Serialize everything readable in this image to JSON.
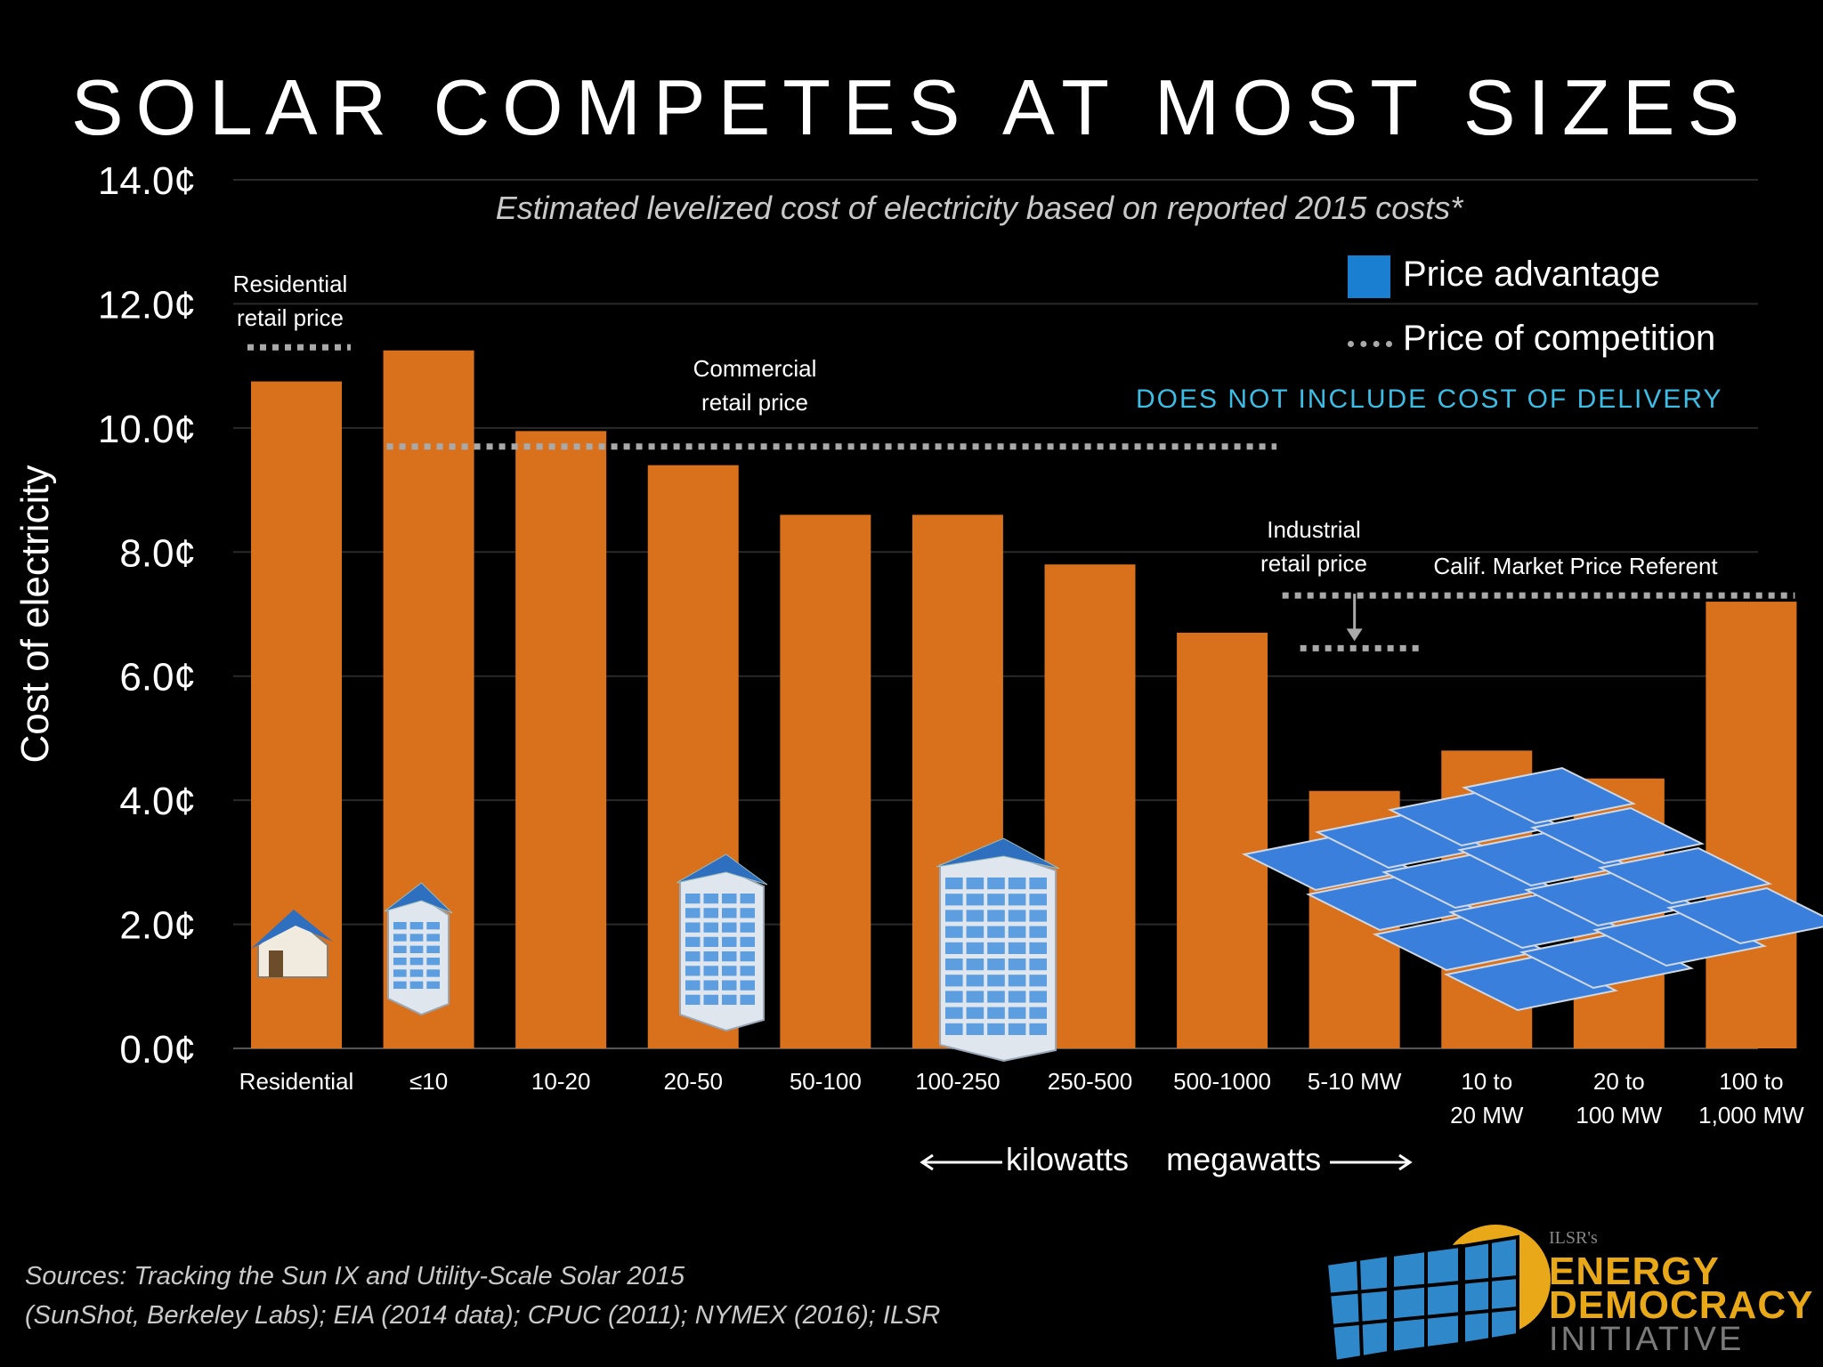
{
  "chart_data": {
    "type": "bar",
    "title": "SOLAR COMPETES AT MOST SIZES",
    "subtitle": "Estimated levelized cost of electricity based on reported 2015 costs*",
    "ylabel": "Cost of electricity",
    "ylim": [
      0,
      14
    ],
    "yticks": [
      "0.0¢",
      "2.0¢",
      "4.0¢",
      "6.0¢",
      "8.0¢",
      "10.0¢",
      "12.0¢",
      "14.0¢"
    ],
    "grid": true,
    "categories": [
      [
        "Residential"
      ],
      [
        "≤10"
      ],
      [
        "10-20"
      ],
      [
        "20-50"
      ],
      [
        "50-100"
      ],
      [
        "100-250"
      ],
      [
        "250-500"
      ],
      [
        "500-1000"
      ],
      [
        "5-10 MW"
      ],
      [
        "10 to",
        "20 MW"
      ],
      [
        "20 to",
        "100 MW"
      ],
      [
        "100 to",
        "1,000 MW"
      ]
    ],
    "values": [
      10.75,
      11.25,
      9.95,
      9.4,
      8.6,
      8.6,
      7.8,
      6.7,
      4.15,
      4.8,
      4.35,
      7.2
    ],
    "bar_color": "#d9701c",
    "competition_lines": [
      {
        "label": [
          "Residential",
          "retail price"
        ],
        "value": 11.3,
        "from": 0,
        "to": 0
      },
      {
        "label": [
          "Commercial",
          "retail price"
        ],
        "value": 9.7,
        "from": 1,
        "to": 7
      },
      {
        "label": [
          "Industrial",
          "retail price"
        ],
        "value": 6.45,
        "from": 8,
        "to": 8
      },
      {
        "label": [
          "Calif. Market Price Referent"
        ],
        "value": 7.3,
        "from": 8,
        "to": 11
      }
    ],
    "legend": [
      {
        "label": "Price advantage",
        "color": "#1b7fd1",
        "style": "square"
      },
      {
        "label": "Price of competition",
        "color": "#aaaaaa",
        "style": "dotted"
      }
    ],
    "legend_position": "top-right",
    "note": "DOES NOT INCLUDE COST OF DELIVERY",
    "unit_left": "kilowatts",
    "unit_right": "megawatts",
    "colors": {
      "note": "#3cbde6",
      "accent": "#e8a818"
    }
  },
  "icons": [
    "house-solar-icon",
    "small-building-solar-icon",
    "mid-building-solar-icon",
    "tall-building-solar-icon",
    "solar-farm-icon"
  ],
  "sources": [
    "Sources: Tracking the Sun IX and Utility-Scale Solar 2015",
    "(SunShot, Berkeley Labs); EIA (2014 data); CPUC (2011); NYMEX (2016); ILSR"
  ],
  "logo": {
    "isr": "ILSR's",
    "line1": "ENERGY",
    "line2": "DEMOCRACY",
    "line3": "INITIATIVE"
  }
}
